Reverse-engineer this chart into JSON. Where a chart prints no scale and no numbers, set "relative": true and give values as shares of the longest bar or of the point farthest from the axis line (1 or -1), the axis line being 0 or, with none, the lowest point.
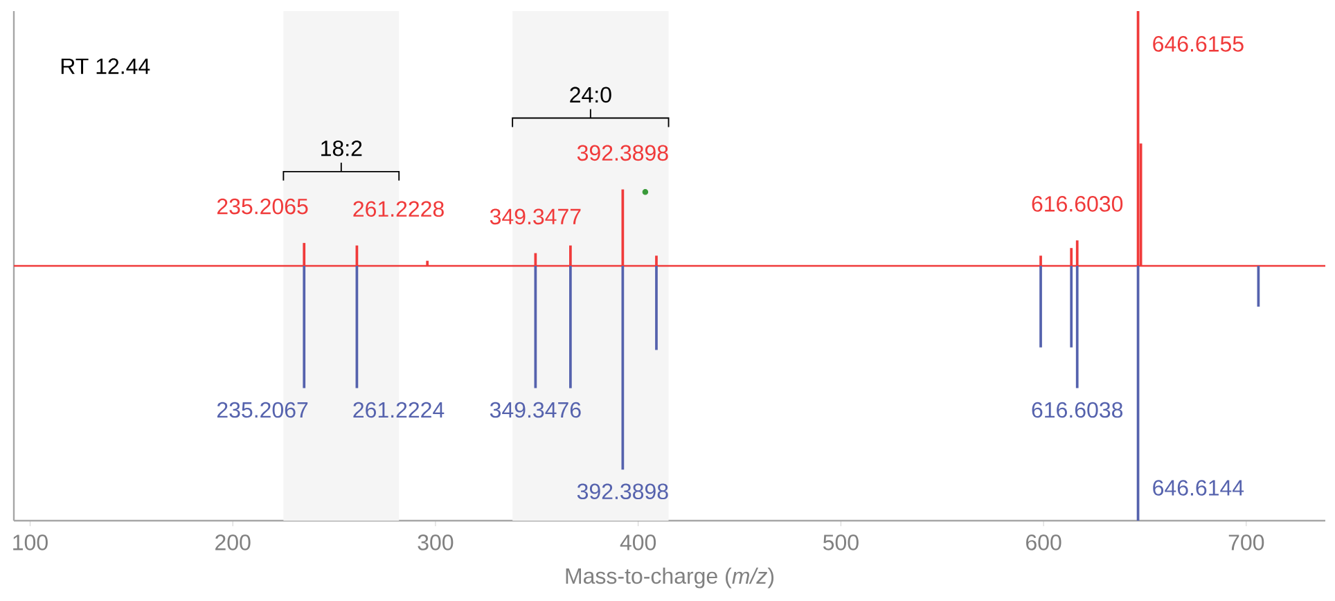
{
  "chart_data": {
    "type": "bar",
    "relative": true,
    "xlabel": "Mass-to-charge (*m/z*)",
    "xlim": [
      92,
      739
    ],
    "xticks": [
      {
        "value": 100,
        "label": "100"
      },
      {
        "value": 200,
        "label": "200"
      },
      {
        "value": 300,
        "label": "300"
      },
      {
        "value": 400,
        "label": "400"
      },
      {
        "value": 500,
        "label": "500"
      },
      {
        "value": 600,
        "label": "600"
      },
      {
        "value": 700,
        "label": "700"
      }
    ],
    "series": [
      {
        "color": "#f03a3a",
        "x": [
          235.2065,
          261.2228,
          296,
          349.3477,
          366.6,
          392.3898,
          409,
          598.6,
          613.7,
          616.603,
          646.6155,
          648
        ],
        "values": [
          0.09,
          0.08,
          0.02,
          0.05,
          0.08,
          0.3,
          0.04,
          0.04,
          0.07,
          0.1,
          1,
          0.48
        ]
      },
      {
        "color": "#5562ad",
        "x": [
          235.2067,
          261.2224,
          349.3476,
          366.6,
          392.3898,
          409,
          598.6,
          613.7,
          616.6038,
          646.6144,
          706
        ],
        "values": [
          -0.48,
          -0.48,
          -0.48,
          -0.48,
          -0.8,
          -0.33,
          -0.32,
          -0.32,
          -0.48,
          -1,
          -0.16
        ]
      },
      {
        "type": "scatter",
        "color": "#3a9a3a",
        "marker": "circle",
        "x": [
          403.5
        ],
        "values": [
          0.29
        ]
      }
    ],
    "ref_lines": [
      {
        "axis": "y",
        "value": 0,
        "color": "#f03a3a"
      }
    ],
    "bands": [
      {
        "axis": "x",
        "from": 225,
        "to": 282,
        "label": "18:2"
      },
      {
        "axis": "x",
        "from": 338,
        "to": 415,
        "label": "24:0"
      }
    ],
    "annotations": [
      "RT 12.44",
      {
        "text": "235.2065",
        "x": 235.2065,
        "y": 0.09
      },
      {
        "text": "261.2228",
        "x": 261.2228,
        "y": 0.08
      },
      {
        "text": "349.3477",
        "x": 349.3477,
        "y": 0.05
      },
      {
        "text": "392.3898",
        "x": 392.3898,
        "y": 0.3
      },
      {
        "text": "616.6030",
        "x": 616.603,
        "y": 0.1
      },
      {
        "text": "646.6155",
        "x": 646.6155,
        "y": 1
      },
      {
        "text": "235.2067",
        "x": 235.2067,
        "y": -0.48
      },
      {
        "text": "261.2224",
        "x": 261.2224,
        "y": -0.48
      },
      {
        "text": "349.3476",
        "x": 349.3476,
        "y": -0.48
      },
      {
        "text": "392.3898",
        "x": 392.3898,
        "y": -0.8
      },
      {
        "text": "616.6038",
        "x": 616.6038,
        "y": -0.48
      },
      {
        "text": "646.6144",
        "x": 646.6144,
        "y": -1
      }
    ]
  }
}
